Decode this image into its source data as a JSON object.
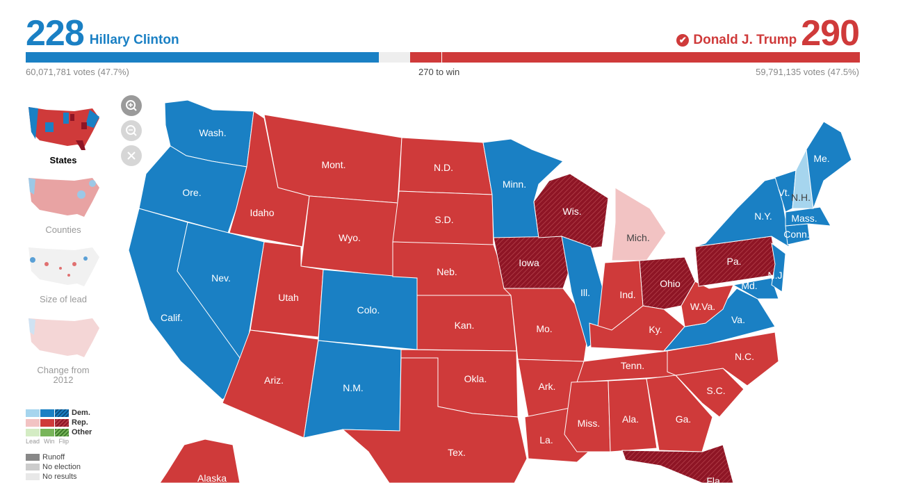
{
  "header": {
    "dem": {
      "electoral_votes": "228",
      "name": "Hillary Clinton",
      "popular": "60,071,781 votes (47.7%)"
    },
    "rep": {
      "electoral_votes": "290",
      "name": "Donald J. Trump",
      "popular": "59,791,135 votes (47.5%)",
      "winner_icon": "checkmark-icon"
    },
    "to_win": "270 to win",
    "progress": {
      "dem_electoral_fraction": 0.4238,
      "rep_electoral_fraction": 0.539,
      "threshold": 270,
      "total": 538
    }
  },
  "colors": {
    "dem_win": "#1a80c4",
    "dem_flip": "#1a80c4",
    "dem_lead": "#a6d5ee",
    "rep_win": "#cf3a3a",
    "rep_flip": "#8e1525",
    "rep_lead": "#f2c3c3",
    "other_lead": "#d4ecc4",
    "other_win": "#78b55a",
    "other_flip": "#3e7b2b",
    "runoff": "#888888",
    "no_election": "#cccccc",
    "no_results": "#e8e8e8"
  },
  "zoom_controls": {
    "zoom_in": "zoom-in-icon",
    "zoom_out": "zoom-out-icon",
    "reset": "close-icon"
  },
  "map_views": [
    {
      "label": "States",
      "active": true
    },
    {
      "label": "Counties",
      "active": false
    },
    {
      "label": "Size of lead",
      "active": false
    },
    {
      "label": "Change from 2012",
      "active": false
    }
  ],
  "legend": {
    "rows": [
      "Dem.",
      "Rep.",
      "Other"
    ],
    "sublabels": [
      "Lead",
      "Win",
      "Flip"
    ],
    "extras": [
      "Runoff",
      "No election",
      "No results"
    ]
  },
  "states": [
    {
      "abbr": "Wash.",
      "party": "dem"
    },
    {
      "abbr": "Ore.",
      "party": "dem"
    },
    {
      "abbr": "Calif.",
      "party": "dem"
    },
    {
      "abbr": "Nev.",
      "party": "dem"
    },
    {
      "abbr": "Idaho",
      "party": "rep"
    },
    {
      "abbr": "Mont.",
      "party": "rep"
    },
    {
      "abbr": "Wyo.",
      "party": "rep"
    },
    {
      "abbr": "Utah",
      "party": "rep"
    },
    {
      "abbr": "Colo.",
      "party": "dem"
    },
    {
      "abbr": "Ariz.",
      "party": "rep"
    },
    {
      "abbr": "N.M.",
      "party": "dem"
    },
    {
      "abbr": "N.D.",
      "party": "rep"
    },
    {
      "abbr": "S.D.",
      "party": "rep"
    },
    {
      "abbr": "Neb.",
      "party": "rep"
    },
    {
      "abbr": "Kan.",
      "party": "rep"
    },
    {
      "abbr": "Okla.",
      "party": "rep"
    },
    {
      "abbr": "Tex.",
      "party": "rep"
    },
    {
      "abbr": "Minn.",
      "party": "dem"
    },
    {
      "abbr": "Iowa",
      "party": "rep-flip"
    },
    {
      "abbr": "Mo.",
      "party": "rep"
    },
    {
      "abbr": "Ark.",
      "party": "rep"
    },
    {
      "abbr": "La.",
      "party": "rep"
    },
    {
      "abbr": "Wis.",
      "party": "rep-flip"
    },
    {
      "abbr": "Ill.",
      "party": "dem"
    },
    {
      "abbr": "Mich.",
      "party": "rep-lead"
    },
    {
      "abbr": "Ind.",
      "party": "rep"
    },
    {
      "abbr": "Ohio",
      "party": "rep-flip"
    },
    {
      "abbr": "Ky.",
      "party": "rep"
    },
    {
      "abbr": "Tenn.",
      "party": "rep"
    },
    {
      "abbr": "Miss.",
      "party": "rep"
    },
    {
      "abbr": "Ala.",
      "party": "rep"
    },
    {
      "abbr": "Ga.",
      "party": "rep"
    },
    {
      "abbr": "Fla.",
      "party": "rep-flip"
    },
    {
      "abbr": "S.C.",
      "party": "rep"
    },
    {
      "abbr": "N.C.",
      "party": "rep"
    },
    {
      "abbr": "Va.",
      "party": "dem"
    },
    {
      "abbr": "W.Va.",
      "party": "rep"
    },
    {
      "abbr": "Pa.",
      "party": "rep-flip"
    },
    {
      "abbr": "N.Y.",
      "party": "dem"
    },
    {
      "abbr": "Md.",
      "party": "dem"
    },
    {
      "abbr": "N.J.",
      "party": "dem"
    },
    {
      "abbr": "Conn.",
      "party": "dem"
    },
    {
      "abbr": "Mass.",
      "party": "dem"
    },
    {
      "abbr": "Vt.",
      "party": "dem"
    },
    {
      "abbr": "N.H.",
      "party": "dem-lead"
    },
    {
      "abbr": "Me.",
      "party": "dem"
    },
    {
      "abbr": "Alaska",
      "party": "rep"
    }
  ]
}
